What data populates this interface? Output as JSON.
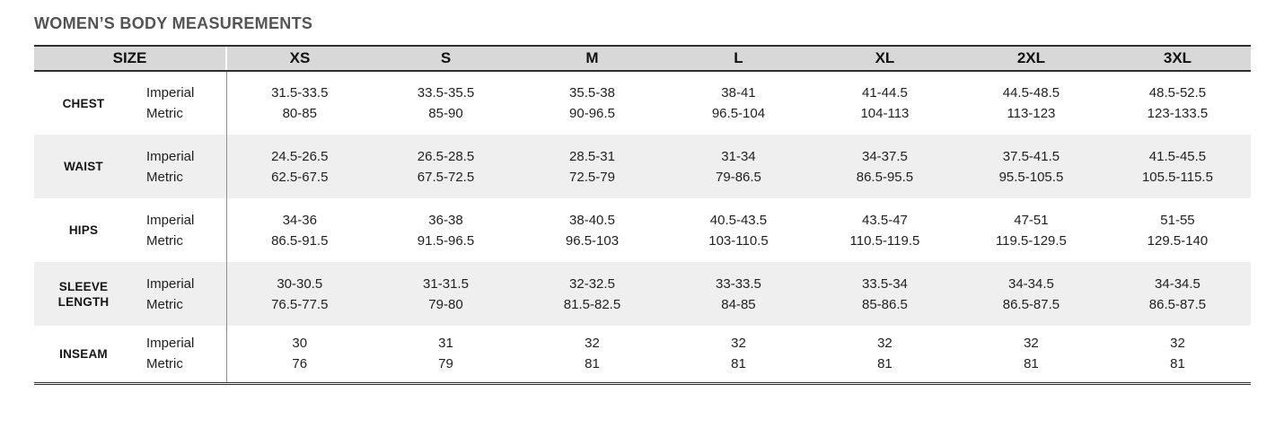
{
  "title": "WOMEN’S BODY MEASUREMENTS",
  "table": {
    "size_header": "SIZE",
    "sizes": [
      "XS",
      "S",
      "M",
      "L",
      "XL",
      "2XL",
      "3XL"
    ],
    "unit_labels": {
      "imperial": "Imperial",
      "metric": "Metric"
    },
    "rows": [
      {
        "label": "CHEST",
        "imperial": [
          "31.5-33.5",
          "33.5-35.5",
          "35.5-38",
          "38-41",
          "41-44.5",
          "44.5-48.5",
          "48.5-52.5"
        ],
        "metric": [
          "80-85",
          "85-90",
          "90-96.5",
          "96.5-104",
          "104-113",
          "113-123",
          "123-133.5"
        ]
      },
      {
        "label": "WAIST",
        "imperial": [
          "24.5-26.5",
          "26.5-28.5",
          "28.5-31",
          "31-34",
          "34-37.5",
          "37.5-41.5",
          "41.5-45.5"
        ],
        "metric": [
          "62.5-67.5",
          "67.5-72.5",
          "72.5-79",
          "79-86.5",
          "86.5-95.5",
          "95.5-105.5",
          "105.5-115.5"
        ]
      },
      {
        "label": "HIPS",
        "imperial": [
          "34-36",
          "36-38",
          "38-40.5",
          "40.5-43.5",
          "43.5-47",
          "47-51",
          "51-55"
        ],
        "metric": [
          "86.5-91.5",
          "91.5-96.5",
          "96.5-103",
          "103-110.5",
          "110.5-119.5",
          "119.5-129.5",
          "129.5-140"
        ]
      },
      {
        "label": "SLEEVE LENGTH",
        "imperial": [
          "30-30.5",
          "31-31.5",
          "32-32.5",
          "33-33.5",
          "33.5-34",
          "34-34.5",
          "34-34.5"
        ],
        "metric": [
          "76.5-77.5",
          "79-80",
          "81.5-82.5",
          "84-85",
          "85-86.5",
          "86.5-87.5",
          "86.5-87.5"
        ]
      },
      {
        "label": "INSEAM",
        "imperial": [
          "30",
          "31",
          "32",
          "32",
          "32",
          "32",
          "32"
        ],
        "metric": [
          "76",
          "79",
          "81",
          "81",
          "81",
          "81",
          "81"
        ]
      }
    ]
  },
  "colors": {
    "header_background": "#d8d8d8",
    "stripe_background": "#efefef",
    "border_dark": "#2f2f2f",
    "column_divider": "#8f8f8f",
    "title_text": "#545454",
    "body_text": "#1f1f1f"
  }
}
